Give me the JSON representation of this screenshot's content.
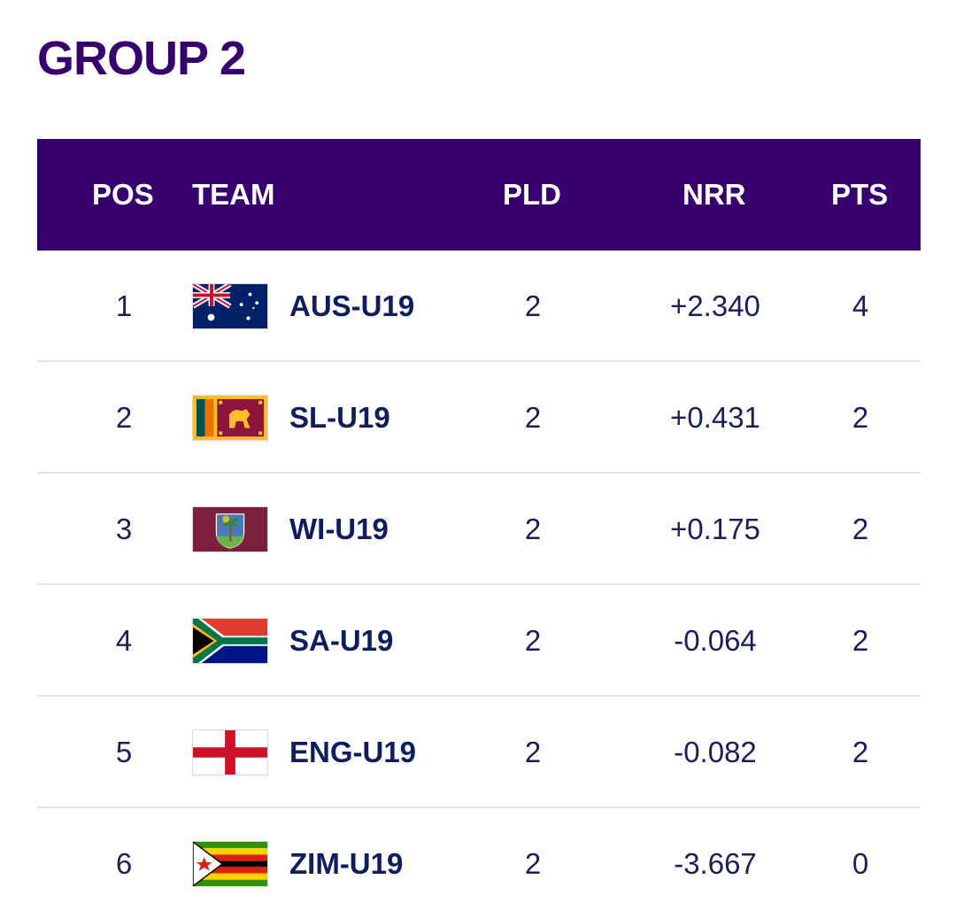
{
  "title": "GROUP 2",
  "headers": {
    "pos": "POS",
    "team": "TEAM",
    "pld": "PLD",
    "nrr": "NRR",
    "pts": "PTS"
  },
  "rows": [
    {
      "pos": "1",
      "team": "AUS-U19",
      "pld": "2",
      "nrr": "+2.340",
      "pts": "4",
      "flag": "australia-flag-icon"
    },
    {
      "pos": "2",
      "team": "SL-U19",
      "pld": "2",
      "nrr": "+0.431",
      "pts": "2",
      "flag": "sri-lanka-flag-icon"
    },
    {
      "pos": "3",
      "team": "WI-U19",
      "pld": "2",
      "nrr": "+0.175",
      "pts": "2",
      "flag": "west-indies-flag-icon"
    },
    {
      "pos": "4",
      "team": "SA-U19",
      "pld": "2",
      "nrr": "-0.064",
      "pts": "2",
      "flag": "south-africa-flag-icon"
    },
    {
      "pos": "5",
      "team": "ENG-U19",
      "pld": "2",
      "nrr": "-0.082",
      "pts": "2",
      "flag": "england-flag-icon"
    },
    {
      "pos": "6",
      "team": "ZIM-U19",
      "pld": "2",
      "nrr": "-3.667",
      "pts": "0",
      "flag": "zimbabwe-flag-icon"
    }
  ],
  "colors": {
    "header_bg": "#37006e",
    "title": "#37006e",
    "text": "#1a1f5a"
  }
}
